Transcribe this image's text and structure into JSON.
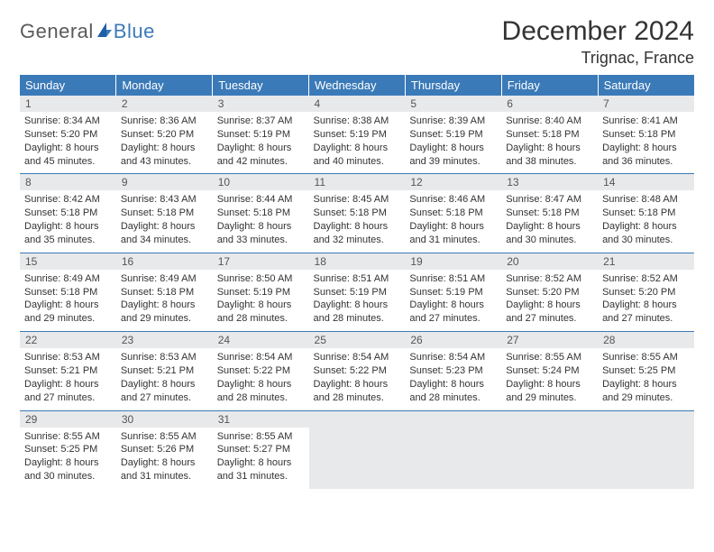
{
  "brand": {
    "part1": "General",
    "part2": "Blue"
  },
  "title": "December 2024",
  "location": "Trignac, France",
  "colors": {
    "header_bg": "#3b7ab8",
    "header_text": "#ffffff",
    "daynum_bg": "#e8e9ea",
    "cell_text": "#333333",
    "border": "#3b7ab8",
    "logo_gray": "#5a5a5a",
    "logo_blue": "#3b7ab8"
  },
  "weekdays": [
    "Sunday",
    "Monday",
    "Tuesday",
    "Wednesday",
    "Thursday",
    "Friday",
    "Saturday"
  ],
  "weeks": [
    [
      {
        "n": "1",
        "sr": "Sunrise: 8:34 AM",
        "ss": "Sunset: 5:20 PM",
        "d1": "Daylight: 8 hours",
        "d2": "and 45 minutes."
      },
      {
        "n": "2",
        "sr": "Sunrise: 8:36 AM",
        "ss": "Sunset: 5:20 PM",
        "d1": "Daylight: 8 hours",
        "d2": "and 43 minutes."
      },
      {
        "n": "3",
        "sr": "Sunrise: 8:37 AM",
        "ss": "Sunset: 5:19 PM",
        "d1": "Daylight: 8 hours",
        "d2": "and 42 minutes."
      },
      {
        "n": "4",
        "sr": "Sunrise: 8:38 AM",
        "ss": "Sunset: 5:19 PM",
        "d1": "Daylight: 8 hours",
        "d2": "and 40 minutes."
      },
      {
        "n": "5",
        "sr": "Sunrise: 8:39 AM",
        "ss": "Sunset: 5:19 PM",
        "d1": "Daylight: 8 hours",
        "d2": "and 39 minutes."
      },
      {
        "n": "6",
        "sr": "Sunrise: 8:40 AM",
        "ss": "Sunset: 5:18 PM",
        "d1": "Daylight: 8 hours",
        "d2": "and 38 minutes."
      },
      {
        "n": "7",
        "sr": "Sunrise: 8:41 AM",
        "ss": "Sunset: 5:18 PM",
        "d1": "Daylight: 8 hours",
        "d2": "and 36 minutes."
      }
    ],
    [
      {
        "n": "8",
        "sr": "Sunrise: 8:42 AM",
        "ss": "Sunset: 5:18 PM",
        "d1": "Daylight: 8 hours",
        "d2": "and 35 minutes."
      },
      {
        "n": "9",
        "sr": "Sunrise: 8:43 AM",
        "ss": "Sunset: 5:18 PM",
        "d1": "Daylight: 8 hours",
        "d2": "and 34 minutes."
      },
      {
        "n": "10",
        "sr": "Sunrise: 8:44 AM",
        "ss": "Sunset: 5:18 PM",
        "d1": "Daylight: 8 hours",
        "d2": "and 33 minutes."
      },
      {
        "n": "11",
        "sr": "Sunrise: 8:45 AM",
        "ss": "Sunset: 5:18 PM",
        "d1": "Daylight: 8 hours",
        "d2": "and 32 minutes."
      },
      {
        "n": "12",
        "sr": "Sunrise: 8:46 AM",
        "ss": "Sunset: 5:18 PM",
        "d1": "Daylight: 8 hours",
        "d2": "and 31 minutes."
      },
      {
        "n": "13",
        "sr": "Sunrise: 8:47 AM",
        "ss": "Sunset: 5:18 PM",
        "d1": "Daylight: 8 hours",
        "d2": "and 30 minutes."
      },
      {
        "n": "14",
        "sr": "Sunrise: 8:48 AM",
        "ss": "Sunset: 5:18 PM",
        "d1": "Daylight: 8 hours",
        "d2": "and 30 minutes."
      }
    ],
    [
      {
        "n": "15",
        "sr": "Sunrise: 8:49 AM",
        "ss": "Sunset: 5:18 PM",
        "d1": "Daylight: 8 hours",
        "d2": "and 29 minutes."
      },
      {
        "n": "16",
        "sr": "Sunrise: 8:49 AM",
        "ss": "Sunset: 5:18 PM",
        "d1": "Daylight: 8 hours",
        "d2": "and 29 minutes."
      },
      {
        "n": "17",
        "sr": "Sunrise: 8:50 AM",
        "ss": "Sunset: 5:19 PM",
        "d1": "Daylight: 8 hours",
        "d2": "and 28 minutes."
      },
      {
        "n": "18",
        "sr": "Sunrise: 8:51 AM",
        "ss": "Sunset: 5:19 PM",
        "d1": "Daylight: 8 hours",
        "d2": "and 28 minutes."
      },
      {
        "n": "19",
        "sr": "Sunrise: 8:51 AM",
        "ss": "Sunset: 5:19 PM",
        "d1": "Daylight: 8 hours",
        "d2": "and 27 minutes."
      },
      {
        "n": "20",
        "sr": "Sunrise: 8:52 AM",
        "ss": "Sunset: 5:20 PM",
        "d1": "Daylight: 8 hours",
        "d2": "and 27 minutes."
      },
      {
        "n": "21",
        "sr": "Sunrise: 8:52 AM",
        "ss": "Sunset: 5:20 PM",
        "d1": "Daylight: 8 hours",
        "d2": "and 27 minutes."
      }
    ],
    [
      {
        "n": "22",
        "sr": "Sunrise: 8:53 AM",
        "ss": "Sunset: 5:21 PM",
        "d1": "Daylight: 8 hours",
        "d2": "and 27 minutes."
      },
      {
        "n": "23",
        "sr": "Sunrise: 8:53 AM",
        "ss": "Sunset: 5:21 PM",
        "d1": "Daylight: 8 hours",
        "d2": "and 27 minutes."
      },
      {
        "n": "24",
        "sr": "Sunrise: 8:54 AM",
        "ss": "Sunset: 5:22 PM",
        "d1": "Daylight: 8 hours",
        "d2": "and 28 minutes."
      },
      {
        "n": "25",
        "sr": "Sunrise: 8:54 AM",
        "ss": "Sunset: 5:22 PM",
        "d1": "Daylight: 8 hours",
        "d2": "and 28 minutes."
      },
      {
        "n": "26",
        "sr": "Sunrise: 8:54 AM",
        "ss": "Sunset: 5:23 PM",
        "d1": "Daylight: 8 hours",
        "d2": "and 28 minutes."
      },
      {
        "n": "27",
        "sr": "Sunrise: 8:55 AM",
        "ss": "Sunset: 5:24 PM",
        "d1": "Daylight: 8 hours",
        "d2": "and 29 minutes."
      },
      {
        "n": "28",
        "sr": "Sunrise: 8:55 AM",
        "ss": "Sunset: 5:25 PM",
        "d1": "Daylight: 8 hours",
        "d2": "and 29 minutes."
      }
    ],
    [
      {
        "n": "29",
        "sr": "Sunrise: 8:55 AM",
        "ss": "Sunset: 5:25 PM",
        "d1": "Daylight: 8 hours",
        "d2": "and 30 minutes."
      },
      {
        "n": "30",
        "sr": "Sunrise: 8:55 AM",
        "ss": "Sunset: 5:26 PM",
        "d1": "Daylight: 8 hours",
        "d2": "and 31 minutes."
      },
      {
        "n": "31",
        "sr": "Sunrise: 8:55 AM",
        "ss": "Sunset: 5:27 PM",
        "d1": "Daylight: 8 hours",
        "d2": "and 31 minutes."
      },
      null,
      null,
      null,
      null
    ]
  ]
}
